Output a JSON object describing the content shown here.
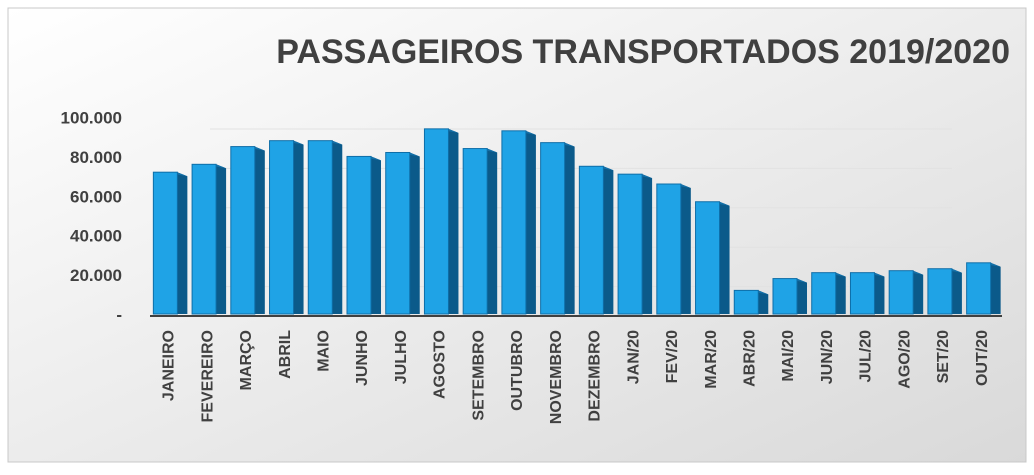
{
  "chart_data": {
    "type": "bar3d",
    "title": "PASSAGEIROS TRANSPORTADOS 2019/2020",
    "categories": [
      "JANEIRO",
      "FEVEREIRO",
      "MARÇO",
      "ABRIL",
      "MAIO",
      "JUNHO",
      "JULHO",
      "AGOSTO",
      "SETEMBRO",
      "OUTUBRO",
      "NOVEMBRO",
      "DEZEMBRO",
      "JAN/20",
      "FEV/20",
      "MAR/20",
      "ABR/20",
      "MAI/20",
      "JUN/20",
      "JUL/20",
      "AGO/20",
      "SET/20",
      "OUT/20"
    ],
    "values": [
      73000,
      77000,
      86000,
      89000,
      89000,
      81000,
      83000,
      95000,
      85000,
      94000,
      88000,
      76000,
      72000,
      67000,
      58000,
      13000,
      19000,
      22000,
      22000,
      23000,
      24000,
      27000
    ],
    "color": "#1fa3e6",
    "ylim": [
      0,
      100000
    ],
    "yticks": [
      {
        "value": 0,
        "label": "-"
      },
      {
        "value": 20000,
        "label": "20.000"
      },
      {
        "value": 40000,
        "label": "40.000"
      },
      {
        "value": 60000,
        "label": "60.000"
      },
      {
        "value": 80000,
        "label": "80.000"
      },
      {
        "value": 100000,
        "label": "100.000"
      }
    ],
    "grid": true
  }
}
